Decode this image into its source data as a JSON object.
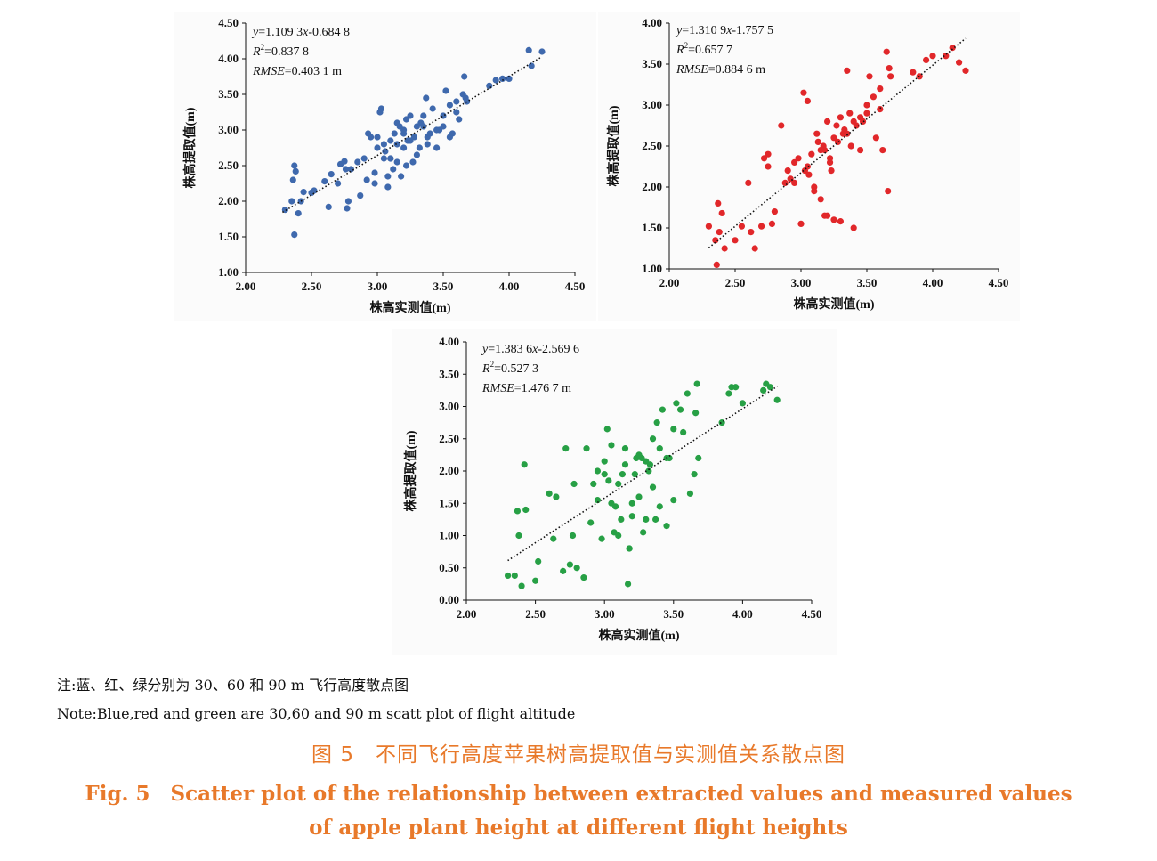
{
  "chart_data": [
    {
      "type": "scatter",
      "color": "#3f69ad",
      "xlabel": "株高实测值(m)",
      "ylabel": "株高提取值(m)",
      "xlim": [
        2.0,
        4.5
      ],
      "ylim": [
        1.0,
        4.5
      ],
      "xticks": [
        "2.00",
        "2.50",
        "3.00",
        "3.50",
        "4.00",
        "4.50"
      ],
      "yticks": [
        "1.00",
        "1.50",
        "2.00",
        "2.50",
        "3.00",
        "3.50",
        "4.00",
        "4.50"
      ],
      "equation": {
        "y": "y",
        "rest": "=1.109 3",
        "x": "x",
        "tail": "-0.684 8"
      },
      "r2": {
        "label": "R",
        "sup": "2",
        "value": "=0.837 8"
      },
      "rmse": {
        "label": "RMSE",
        "value": "=0.403 1 m"
      },
      "trendline": {
        "slope": 1.1093,
        "intercept": -0.6848,
        "x_range": [
          2.28,
          4.25
        ]
      },
      "x": [
        2.3,
        2.35,
        2.36,
        2.37,
        2.37,
        2.38,
        2.4,
        2.42,
        2.44,
        2.5,
        2.52,
        2.6,
        2.63,
        2.65,
        2.7,
        2.72,
        2.75,
        2.76,
        2.77,
        2.78,
        2.8,
        2.85,
        2.87,
        2.9,
        2.93,
        2.95,
        2.98,
        3.0,
        3.02,
        3.03,
        3.05,
        3.06,
        3.08,
        3.1,
        3.1,
        3.12,
        3.13,
        3.15,
        3.15,
        3.17,
        3.18,
        3.2,
        3.2,
        3.22,
        3.23,
        3.25,
        3.27,
        3.28,
        3.3,
        3.3,
        3.32,
        3.33,
        3.35,
        3.37,
        3.38,
        3.4,
        3.42,
        3.45,
        3.47,
        3.5,
        3.5,
        3.52,
        3.55,
        3.57,
        3.6,
        3.62,
        3.65,
        3.66,
        3.67,
        3.68,
        3.85,
        3.9,
        3.95,
        4.0,
        4.15,
        4.17,
        4.25,
        3.05,
        3.15,
        3.2,
        3.38,
        3.1,
        2.98,
        3.0,
        3.25,
        3.45,
        3.55,
        2.92,
        3.08,
        3.22,
        3.35,
        3.6
      ],
      "y": [
        1.88,
        2.0,
        2.3,
        2.5,
        1.53,
        2.42,
        1.83,
        2.0,
        2.13,
        2.12,
        2.15,
        2.28,
        1.92,
        2.38,
        2.25,
        2.52,
        2.56,
        2.45,
        1.9,
        2.0,
        2.45,
        2.55,
        2.08,
        2.6,
        2.95,
        2.9,
        2.25,
        2.75,
        3.25,
        3.3,
        2.6,
        2.7,
        2.2,
        2.85,
        2.6,
        2.45,
        2.95,
        2.8,
        2.55,
        3.05,
        2.35,
        2.95,
        2.75,
        3.15,
        2.85,
        2.85,
        2.55,
        2.9,
        3.05,
        2.65,
        2.75,
        3.1,
        3.2,
        3.45,
        2.9,
        2.95,
        3.3,
        3.0,
        3.0,
        3.2,
        3.05,
        3.55,
        3.35,
        2.95,
        3.4,
        3.15,
        3.5,
        3.75,
        3.45,
        3.4,
        3.62,
        3.7,
        3.72,
        3.72,
        4.12,
        3.9,
        4.1,
        2.8,
        3.1,
        3.0,
        2.8,
        2.6,
        2.4,
        2.9,
        3.2,
        2.75,
        2.9,
        2.3,
        2.35,
        2.5,
        3.05,
        3.25
      ]
    },
    {
      "type": "scatter",
      "color": "#e1272a",
      "xlabel": "株高实测值(m)",
      "ylabel": "株高提取值(m)",
      "xlim": [
        2.0,
        4.5
      ],
      "ylim": [
        1.0,
        4.0
      ],
      "xticks": [
        "2.00",
        "2.50",
        "3.00",
        "3.50",
        "4.00",
        "4.50"
      ],
      "yticks": [
        "1.00",
        "1.50",
        "2.00",
        "2.50",
        "3.00",
        "3.50",
        "4.00"
      ],
      "equation": {
        "y": "y",
        "rest": "=1.310 9",
        "x": "x",
        "tail": "-1.757 5"
      },
      "r2": {
        "label": "R",
        "sup": "2",
        "value": "=0.657 7"
      },
      "rmse": {
        "label": "RMSE",
        "value": "=0.884 6 m"
      },
      "trendline": {
        "slope": 1.3109,
        "intercept": -1.7575,
        "x_range": [
          2.3,
          4.25
        ]
      },
      "x": [
        2.3,
        2.35,
        2.36,
        2.37,
        2.38,
        2.4,
        2.42,
        2.5,
        2.55,
        2.6,
        2.62,
        2.65,
        2.7,
        2.72,
        2.75,
        2.78,
        2.8,
        2.85,
        2.88,
        2.9,
        2.92,
        2.95,
        2.98,
        3.0,
        3.02,
        3.03,
        3.05,
        3.06,
        3.08,
        3.1,
        3.12,
        3.13,
        3.15,
        3.17,
        3.18,
        3.2,
        3.22,
        3.23,
        3.25,
        3.27,
        3.28,
        3.3,
        3.32,
        3.33,
        3.35,
        3.37,
        3.38,
        3.4,
        3.42,
        3.45,
        3.47,
        3.5,
        3.52,
        3.55,
        3.57,
        3.6,
        3.62,
        3.65,
        3.66,
        3.67,
        3.68,
        3.85,
        3.9,
        3.95,
        4.0,
        4.1,
        4.15,
        4.2,
        4.25,
        3.18,
        3.25,
        3.3,
        3.4,
        3.05,
        3.1,
        2.95,
        3.22,
        3.35,
        3.45,
        3.5,
        2.75,
        3.6,
        3.2,
        3.15
      ],
      "y": [
        1.52,
        1.35,
        1.05,
        1.8,
        1.45,
        1.68,
        1.25,
        1.35,
        1.52,
        2.05,
        1.45,
        1.25,
        1.52,
        2.35,
        2.4,
        1.55,
        1.7,
        2.75,
        2.05,
        2.2,
        2.1,
        2.3,
        2.35,
        1.55,
        3.15,
        2.2,
        3.05,
        2.15,
        2.4,
        2.0,
        2.65,
        2.55,
        1.85,
        2.5,
        2.45,
        1.65,
        2.35,
        2.2,
        2.6,
        2.75,
        2.55,
        2.85,
        2.65,
        2.7,
        3.42,
        2.9,
        2.5,
        2.8,
        2.75,
        2.85,
        2.8,
        2.9,
        3.35,
        3.1,
        2.6,
        2.95,
        2.45,
        3.65,
        1.95,
        3.45,
        3.35,
        3.4,
        3.35,
        3.55,
        3.6,
        3.6,
        3.7,
        3.52,
        3.42,
        1.65,
        1.6,
        1.58,
        1.5,
        2.25,
        1.95,
        2.05,
        2.3,
        2.65,
        2.45,
        3.0,
        2.25,
        3.2,
        2.8,
        2.45
      ]
    },
    {
      "type": "scatter",
      "color": "#27a045",
      "xlabel": "株高实测值(m)",
      "ylabel": "株高提取值(m)",
      "xlim": [
        2.0,
        4.5
      ],
      "ylim": [
        0.0,
        4.0
      ],
      "xticks": [
        "2.00",
        "2.50",
        "3.00",
        "3.50",
        "4.00",
        "4.50"
      ],
      "yticks": [
        "0.00",
        "0.50",
        "1.00",
        "1.50",
        "2.00",
        "2.50",
        "3.00",
        "3.50",
        "4.00"
      ],
      "equation": {
        "y": "y",
        "rest": "=1.383 6",
        "x": "x",
        "tail": "-2.569 6"
      },
      "r2": {
        "label": "R",
        "sup": "2",
        "value": "=0.527 3"
      },
      "rmse": {
        "label": "RMSE",
        "value": "=1.476 7 m"
      },
      "trendline": {
        "slope": 1.3836,
        "intercept": -2.5696,
        "x_range": [
          2.3,
          4.25
        ]
      },
      "x": [
        2.3,
        2.35,
        2.37,
        2.38,
        2.4,
        2.42,
        2.43,
        2.5,
        2.52,
        2.6,
        2.63,
        2.65,
        2.7,
        2.72,
        2.75,
        2.77,
        2.78,
        2.8,
        2.85,
        2.87,
        2.9,
        2.92,
        2.95,
        2.98,
        3.0,
        3.02,
        3.03,
        3.05,
        3.07,
        3.08,
        3.1,
        3.12,
        3.13,
        3.15,
        3.17,
        3.18,
        3.2,
        3.22,
        3.23,
        3.25,
        3.27,
        3.28,
        3.3,
        3.32,
        3.33,
        3.35,
        3.37,
        3.38,
        3.4,
        3.42,
        3.45,
        3.47,
        3.5,
        3.52,
        3.55,
        3.57,
        3.6,
        3.62,
        3.65,
        3.66,
        3.67,
        3.68,
        3.85,
        3.9,
        3.92,
        3.95,
        4.0,
        4.15,
        4.17,
        4.2,
        4.25,
        3.18,
        3.1,
        3.2,
        3.25,
        3.4,
        3.05,
        2.95,
        3.0,
        3.3,
        3.35,
        3.5,
        3.15,
        3.45
      ],
      "y": [
        0.38,
        0.38,
        1.38,
        1.0,
        0.22,
        2.1,
        1.4,
        0.3,
        0.6,
        1.65,
        0.95,
        1.6,
        0.45,
        2.35,
        0.55,
        1.0,
        1.8,
        0.5,
        0.35,
        2.35,
        1.2,
        1.8,
        1.55,
        0.95,
        1.95,
        2.65,
        1.85,
        2.4,
        1.05,
        1.45,
        1.8,
        1.25,
        1.95,
        2.35,
        0.25,
        0.8,
        1.5,
        1.95,
        2.2,
        1.6,
        2.2,
        1.05,
        1.25,
        2.0,
        2.1,
        2.5,
        1.25,
        2.75,
        1.45,
        2.95,
        1.15,
        2.2,
        2.65,
        3.05,
        2.95,
        2.6,
        3.2,
        1.65,
        1.95,
        2.9,
        3.35,
        2.2,
        2.75,
        3.2,
        3.3,
        3.3,
        3.05,
        3.25,
        3.35,
        3.3,
        3.1,
        0.8,
        1.0,
        1.3,
        2.25,
        2.35,
        1.5,
        2.0,
        2.15,
        2.15,
        1.75,
        1.55,
        2.1,
        2.2
      ]
    }
  ],
  "notes": {
    "cn": "注:蓝、红、绿分别为 30、60 和 90 m 飞行高度散点图",
    "en": "Note:Blue,red and green are 30,60 and 90 m scatt plot of flight altitude"
  },
  "caption": {
    "cn": "图 5　不同飞行高度苹果树高提取值与实测值关系散点图",
    "en_line1": "Fig. 5　Scatter plot of the relationship between extracted values and measured values",
    "en_line2": "of apple plant height at different flight heights"
  }
}
